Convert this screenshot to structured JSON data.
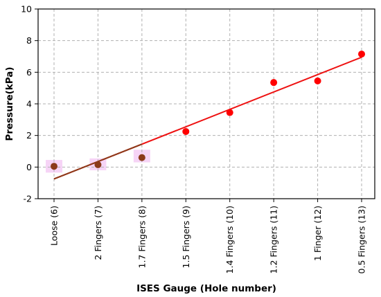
{
  "chart_data": {
    "type": "scatter",
    "title": "",
    "xlabel": "ISES Gauge (Hole number)",
    "ylabel": "Pressure(kPa)",
    "ylim": [
      -2,
      10
    ],
    "yticks": [
      -2,
      0,
      2,
      4,
      6,
      8,
      10
    ],
    "grid": true,
    "categories": [
      "Loose (6)",
      "2 Fingers (7)",
      "1.7 Fingers (8)",
      "1.5 Fingers (9)",
      "1.4 Fingers (10)",
      "1.2 Fingers (11)",
      "1 Finger (12)",
      "0.5 Fingers (13)"
    ],
    "series": [
      {
        "values": [
          0.05,
          0.15,
          0.6,
          2.25,
          3.45,
          5.35,
          5.45,
          7.15
        ],
        "color": "#ff0000",
        "highlight_color": "#8b3a1a",
        "highlight_indices": [
          0,
          1,
          2
        ]
      }
    ],
    "trendline": {
      "from_category": 0,
      "to_category": 7,
      "y_start": -0.75,
      "y_end": 6.95,
      "color": "#ee1111",
      "overlap_color": "#8b3a1a",
      "overlap_until_category": 2
    },
    "shaded_band_color": "#f3c6f3"
  }
}
